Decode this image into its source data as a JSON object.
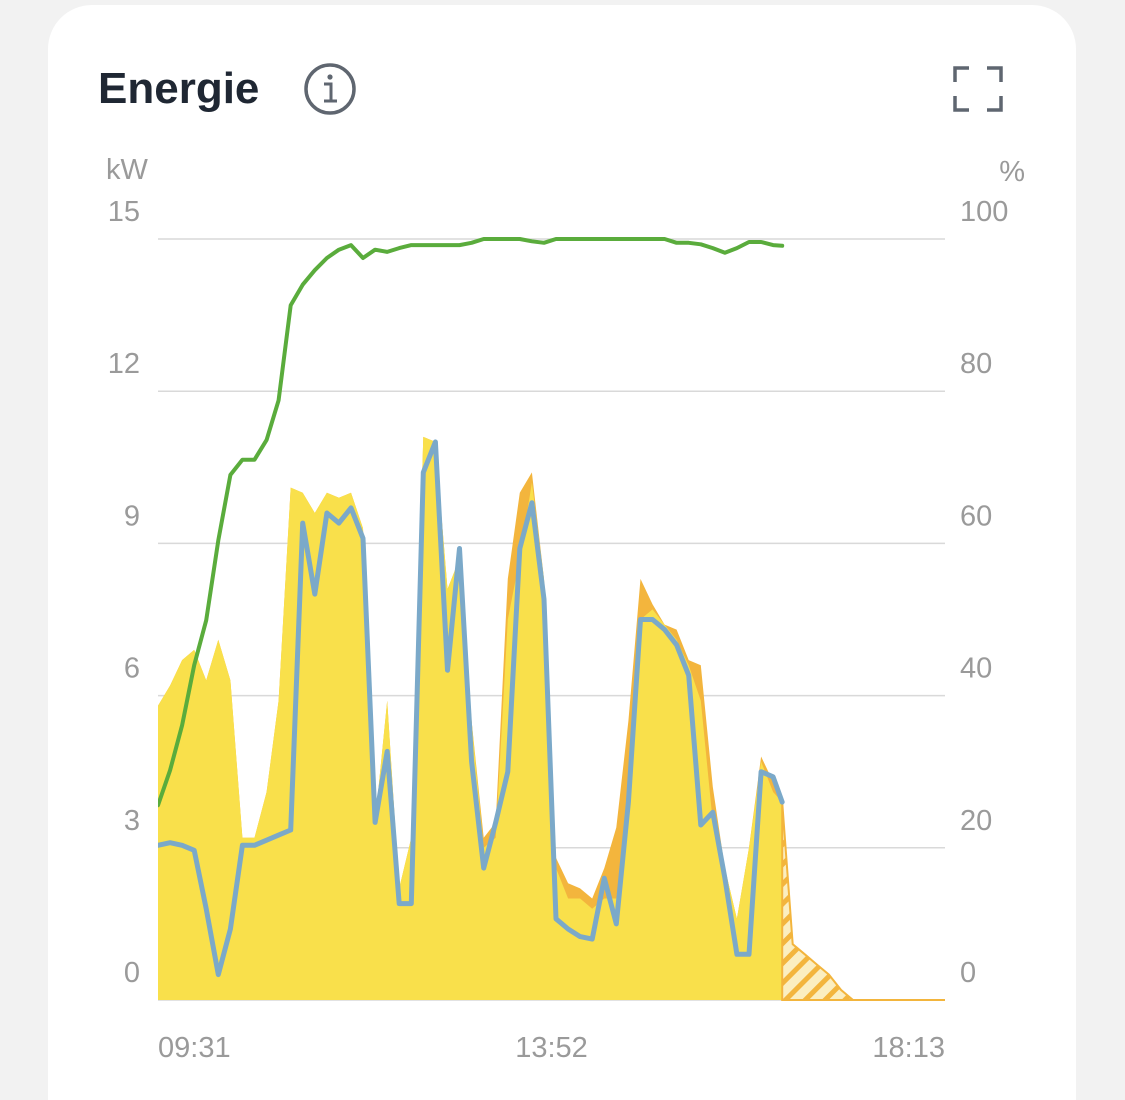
{
  "chart_data": {
    "type": "line",
    "title": "Energie",
    "y_label": "kW",
    "y2_label": "%",
    "x": [
      571,
      579,
      587,
      595,
      603,
      611,
      619,
      627,
      635,
      643,
      651,
      659,
      667,
      675,
      683,
      691,
      699,
      707,
      715,
      723,
      731,
      739,
      747,
      755,
      763,
      771,
      779,
      787,
      795,
      803,
      811,
      819,
      827,
      835,
      843,
      851,
      859,
      867,
      875,
      883,
      891,
      899,
      907,
      915,
      923,
      931,
      939,
      947,
      955,
      963,
      971,
      979,
      985,
      992,
      1000,
      1008,
      1016,
      1024,
      1032,
      1093
    ],
    "xlim": [
      571,
      1093
    ],
    "xticks": [
      {
        "value": 571,
        "label": "09:31"
      },
      {
        "value": 832,
        "label": "13:52"
      },
      {
        "value": 1093,
        "label": "18:13"
      }
    ],
    "ylim": [
      0,
      15
    ],
    "yticks": [
      0,
      3,
      6,
      9,
      12,
      15
    ],
    "y2lim": [
      0,
      100
    ],
    "y2ticks": [
      0,
      20,
      40,
      60,
      80,
      100
    ],
    "grid": true,
    "series": [
      {
        "type": "area",
        "color": "#f3b53d",
        "values": [
          5.8,
          6.2,
          6.7,
          6.9,
          6.3,
          7.1,
          6.3,
          3.2,
          3.2,
          4.1,
          5.9,
          10.1,
          10.0,
          9.6,
          10.0,
          9.9,
          10.0,
          9.3,
          3.5,
          5.9,
          2.2,
          3.2,
          11.1,
          11.0,
          8.1,
          8.7,
          5.5,
          3.2,
          3.5,
          8.3,
          10.0,
          10.4,
          8.3,
          2.8,
          2.3,
          2.2,
          2.0,
          2.6,
          3.4,
          5.5,
          8.3,
          7.8,
          7.4,
          7.3,
          6.7,
          6.6,
          4.2,
          2.6,
          1.6,
          3.0,
          4.8,
          4.3,
          3.9,
          null,
          null,
          null,
          null,
          null,
          null,
          null
        ]
      },
      {
        "type": "area",
        "color": "#f9e04b",
        "values": [
          5.8,
          6.2,
          6.7,
          6.9,
          6.3,
          7.1,
          6.3,
          3.2,
          3.2,
          4.1,
          5.9,
          10.1,
          10.0,
          9.6,
          10.0,
          9.9,
          10.0,
          9.3,
          3.5,
          5.9,
          2.2,
          3.2,
          11.1,
          11.0,
          8.1,
          8.7,
          5.5,
          3.0,
          3.2,
          7.5,
          8.7,
          10.2,
          8.3,
          2.6,
          2.0,
          2.0,
          1.8,
          2.0,
          2.0,
          3.5,
          7.5,
          7.7,
          7.4,
          7.1,
          6.6,
          5.9,
          3.5,
          2.6,
          1.6,
          3.0,
          4.7,
          4.1,
          3.9,
          null,
          null,
          null,
          null,
          null,
          null,
          null
        ]
      },
      {
        "type": "area",
        "pattern": "hatch",
        "color": "#f3b53d",
        "values": [
          null,
          null,
          null,
          null,
          null,
          null,
          null,
          null,
          null,
          null,
          null,
          null,
          null,
          null,
          null,
          null,
          null,
          null,
          null,
          null,
          null,
          null,
          null,
          null,
          null,
          null,
          null,
          null,
          null,
          null,
          null,
          null,
          null,
          null,
          null,
          null,
          null,
          null,
          null,
          null,
          null,
          null,
          null,
          null,
          null,
          null,
          null,
          null,
          null,
          null,
          null,
          null,
          3.9,
          1.1,
          0.9,
          0.7,
          0.5,
          0.2,
          0,
          0
        ]
      },
      {
        "type": "line",
        "color": "#7ba9c9",
        "values": [
          3.05,
          3.1,
          3.05,
          2.95,
          1.8,
          0.5,
          1.4,
          3.05,
          3.05,
          3.15,
          3.25,
          3.35,
          9.4,
          8.0,
          9.6,
          9.4,
          9.7,
          9.1,
          3.5,
          4.9,
          1.9,
          1.9,
          10.4,
          11.0,
          6.5,
          8.9,
          4.7,
          2.6,
          3.5,
          4.5,
          8.9,
          9.8,
          7.9,
          1.6,
          1.4,
          1.25,
          1.2,
          2.4,
          1.5,
          3.9,
          7.5,
          7.5,
          7.3,
          7.0,
          6.4,
          3.45,
          3.7,
          2.4,
          0.9,
          0.9,
          4.5,
          4.4,
          3.9,
          null,
          null,
          null,
          null,
          null,
          null,
          null
        ]
      },
      {
        "type": "line",
        "axis": "y2",
        "color": "#5aac3c",
        "values": [
          25.6,
          30.2,
          36.1,
          44.0,
          49.9,
          60.4,
          69.0,
          71.0,
          71.0,
          73.6,
          78.8,
          91.3,
          94.0,
          95.9,
          97.5,
          98.6,
          99.2,
          97.5,
          98.6,
          98.3,
          98.8,
          99.2,
          99.2,
          99.2,
          99.2,
          99.2,
          99.5,
          100,
          100,
          100,
          100,
          99.7,
          99.5,
          100,
          100,
          100,
          100,
          100,
          100,
          100,
          100,
          100,
          100,
          99.5,
          99.5,
          99.3,
          98.8,
          98.2,
          98.8,
          99.6,
          99.6,
          99.2,
          99.1,
          null,
          null,
          null,
          null,
          null,
          null,
          null
        ]
      }
    ]
  }
}
